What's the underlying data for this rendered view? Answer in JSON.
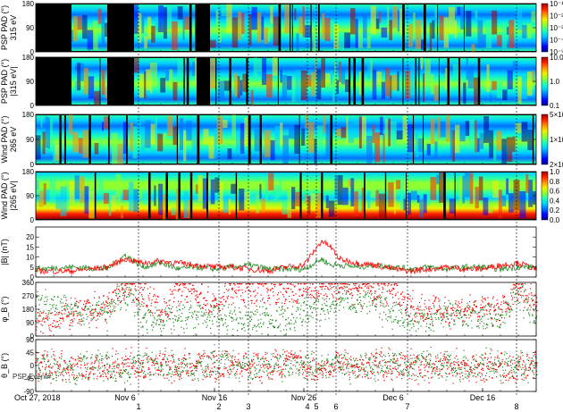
{
  "colors": {
    "spectrogram": [
      "#000090",
      "#0000ff",
      "#0070ff",
      "#00d0ff",
      "#20ffb0",
      "#90ff30",
      "#f0f000",
      "#ff9000",
      "#ff2000",
      "#a00000"
    ],
    "fill": "#000000",
    "series_green": "#228b22",
    "series_red": "#ff0000"
  },
  "events": {
    "labels": [
      "1",
      "2",
      "3",
      "4",
      "5",
      "6",
      "7",
      "8"
    ],
    "times": [
      11.5,
      20.5,
      23.8,
      30.4,
      31.4,
      33.6,
      41.6,
      53.8
    ]
  },
  "x_axis": {
    "date_labels": [
      "Oct 27, 2018",
      "Nov 6",
      "Nov 16",
      "Nov 26",
      "Dec 6",
      "Dec 16"
    ],
    "date_values": [
      0,
      10,
      20,
      30,
      40,
      50
    ],
    "range": [
      0,
      56
    ]
  },
  "annotation": "PSP Event#",
  "panels": [
    {
      "kind": "spectrogram",
      "ylabel": [
        "PSP PAD (°)",
        "315 eV"
      ],
      "yticks": [
        "0",
        "90",
        "180"
      ],
      "ytick_vals": [
        0,
        90,
        180
      ],
      "ylim": [
        0,
        180
      ],
      "cbar_labels": [
        "10⁻¹",
        "10⁻²",
        "10⁻³",
        "10⁻⁴",
        "10⁻⁵"
      ],
      "cbar_vals": [
        1,
        0.75,
        0.5,
        0.25,
        0
      ],
      "scale": "log",
      "active": [
        [
          4,
          8
        ],
        [
          11,
          18
        ],
        [
          19.5,
          58
        ]
      ]
    },
    {
      "kind": "spectrogram",
      "ylabel": [
        "PSP PAD (°)",
        "|315 eV|"
      ],
      "yticks": [
        "0",
        "90",
        "180"
      ],
      "ytick_vals": [
        0,
        90,
        180
      ],
      "ylim": [
        0,
        180
      ],
      "cbar_labels": [
        "10.0",
        "1.0",
        "0.1"
      ],
      "cbar_vals": [
        1,
        0.5,
        0
      ],
      "scale": "log",
      "active": [
        [
          4,
          8
        ],
        [
          11,
          18
        ],
        [
          19.5,
          58
        ]
      ]
    },
    {
      "kind": "spectrogram",
      "ylabel": [
        "Wind PAD (°)",
        "265 eV"
      ],
      "yticks": [
        "0",
        "90",
        "180"
      ],
      "ytick_vals": [
        0,
        90,
        180
      ],
      "ylim": [
        0,
        180
      ],
      "cbar_labels": [
        "5×10⁴",
        "1×10⁴",
        "2×10³"
      ],
      "cbar_vals": [
        1,
        0.5,
        0
      ],
      "scale": "log",
      "active": [
        [
          0,
          58
        ]
      ]
    },
    {
      "kind": "spectrogram",
      "ylabel": [
        "Wind PAD (°)",
        "|265 eV|"
      ],
      "yticks": [
        "0",
        "90",
        "180"
      ],
      "ytick_vals": [
        0,
        90,
        180
      ],
      "ylim": [
        0,
        180
      ],
      "cbar_labels": [
        "1.0",
        "0.8",
        "0.6",
        "0.4",
        "0.2",
        "0.0"
      ],
      "cbar_vals": [
        1,
        0.8,
        0.6,
        0.4,
        0.2,
        0
      ],
      "scale": "linear",
      "active": [
        [
          0,
          58
        ]
      ]
    },
    {
      "kind": "series",
      "ylabel": [
        "|B| (nT)"
      ],
      "yticks": [
        "0",
        "5",
        "10",
        "15",
        "20"
      ],
      "ytick_vals": [
        0,
        5,
        10,
        15,
        20
      ],
      "ylim": [
        0,
        25
      ]
    },
    {
      "kind": "series",
      "ylabel": [
        "φ_B (°)"
      ],
      "yticks": [
        "0",
        "90",
        "180",
        "270",
        "360"
      ],
      "ytick_vals": [
        0,
        90,
        180,
        270,
        360
      ],
      "ylim": [
        0,
        360
      ]
    },
    {
      "kind": "series",
      "ylabel": [
        "θ_B (°)"
      ],
      "yticks": [
        "-90",
        "-45",
        "0",
        "45",
        "90"
      ],
      "ytick_vals": [
        -90,
        -45,
        0,
        45,
        90
      ],
      "ylim": [
        -90,
        90
      ]
    }
  ],
  "chart_data": [
    {
      "type": "heatmap",
      "ylabel": "PSP PAD (°) 315 eV",
      "ylim": [
        0,
        180
      ],
      "colorbar": [
        "10⁻¹",
        "10⁻²",
        "10⁻³",
        "10⁻⁴",
        "10⁻⁵"
      ]
    },
    {
      "type": "heatmap",
      "ylabel": "PSP PAD (°) |315 eV|",
      "ylim": [
        0,
        180
      ],
      "colorbar": [
        "10.0",
        "1.0",
        "0.1"
      ]
    },
    {
      "type": "heatmap",
      "ylabel": "Wind PAD (°) 265 eV",
      "ylim": [
        0,
        180
      ],
      "colorbar": [
        "5×10⁴",
        "1×10⁴",
        "2×10³"
      ]
    },
    {
      "type": "heatmap",
      "ylabel": "Wind PAD (°) |265 eV|",
      "ylim": [
        0,
        180
      ],
      "colorbar": [
        "1.0",
        "0.8",
        "0.6",
        "0.4",
        "0.2",
        "0.0"
      ]
    },
    {
      "type": "line",
      "ylabel": "|B| (nT)",
      "ylim": [
        0,
        25
      ],
      "x": [
        0,
        4,
        8,
        10,
        12,
        14,
        16,
        18,
        20,
        22,
        24,
        26,
        28,
        30,
        32,
        33,
        34,
        36,
        38,
        40,
        42,
        44,
        46,
        48,
        50,
        52,
        54,
        56
      ],
      "series": [
        {
          "color": "green",
          "values": [
            4,
            5,
            4,
            11,
            5,
            7,
            4,
            5,
            4,
            5,
            6,
            4,
            4,
            4,
            9,
            6,
            6,
            5,
            6,
            5,
            4,
            5,
            4,
            5,
            5,
            4,
            5,
            5
          ]
        },
        {
          "color": "red",
          "values": [
            3,
            3,
            5,
            9,
            7,
            8,
            7,
            6,
            5,
            5,
            4,
            3,
            5,
            6,
            18,
            15,
            9,
            7,
            6,
            4,
            3,
            4,
            5,
            4,
            4,
            6,
            7,
            4
          ]
        }
      ]
    },
    {
      "type": "scatter",
      "ylabel": "φ_B (°)",
      "ylim": [
        0,
        360
      ],
      "x": [
        0,
        4,
        8,
        10,
        12,
        14,
        16,
        18,
        20,
        22,
        24,
        26,
        28,
        30,
        32,
        34,
        36,
        38,
        40,
        42,
        44,
        46,
        48,
        50,
        52,
        54,
        56
      ],
      "series": [
        {
          "color": "green",
          "values": [
            200,
            180,
            160,
            300,
            120,
            110,
            120,
            140,
            130,
            120,
            100,
            140,
            110,
            170,
            180,
            250,
            240,
            200,
            170,
            100,
            120,
            150,
            140,
            130,
            140,
            300,
            120
          ]
        },
        {
          "color": "red",
          "values": [
            100,
            150,
            200,
            340,
            310,
            160,
            310,
            300,
            200,
            320,
            300,
            310,
            300,
            300,
            330,
            320,
            320,
            300,
            320,
            200,
            180,
            170,
            180,
            190,
            180,
            320,
            200
          ]
        }
      ]
    },
    {
      "type": "scatter",
      "ylabel": "θ_B (°)",
      "ylim": [
        -90,
        90
      ],
      "x": [
        0,
        4,
        8,
        10,
        12,
        14,
        16,
        18,
        20,
        22,
        24,
        26,
        28,
        30,
        32,
        34,
        36,
        38,
        40,
        42,
        44,
        46,
        48,
        50,
        52,
        54,
        56
      ],
      "series": [
        {
          "color": "green",
          "values": [
            0,
            -10,
            5,
            -20,
            10,
            0,
            5,
            -5,
            10,
            0,
            -10,
            5,
            0,
            10,
            0,
            -5,
            5,
            0,
            10,
            -5,
            5,
            0,
            -10,
            5,
            0,
            10,
            -5
          ]
        },
        {
          "color": "red",
          "values": [
            10,
            0,
            -15,
            20,
            -5,
            10,
            -10,
            15,
            -5,
            10,
            5,
            -10,
            15,
            -5,
            -10,
            10,
            -5,
            15,
            -10,
            5,
            -5,
            10,
            0,
            -10,
            5,
            -15,
            10
          ]
        }
      ]
    }
  ]
}
